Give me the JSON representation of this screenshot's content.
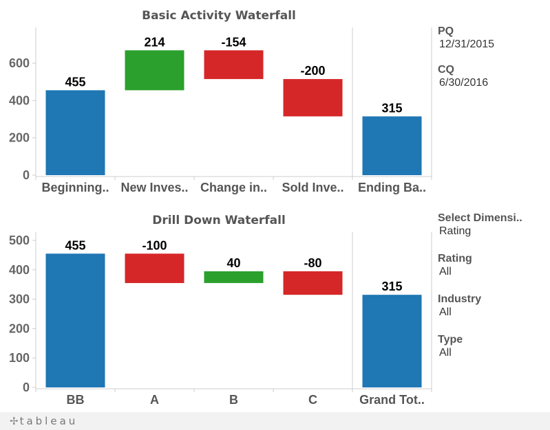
{
  "colors": {
    "total": "#1f77b4",
    "increase": "#2ca02c",
    "decrease": "#d62728",
    "axis": "#cccccc",
    "tick": "#666666",
    "title": "#555555"
  },
  "chart_data": [
    {
      "type": "bar",
      "subtype": "waterfall",
      "title": "Basic Activity Waterfall",
      "categories": [
        "Beginning..",
        "New Inves..",
        "Change in..",
        "Sold Inve..",
        "Ending Ba.."
      ],
      "values": [
        455,
        214,
        -154,
        -200,
        315
      ],
      "data_labels": [
        "455",
        "214",
        "-154",
        "-200",
        "315"
      ],
      "bar_kind": [
        "total",
        "delta",
        "delta",
        "delta",
        "total"
      ],
      "yticks": [
        0,
        200,
        400,
        600
      ],
      "ytick_labels": [
        "0",
        "200",
        "400",
        "600"
      ],
      "ylim": [
        -40,
        780
      ],
      "grid": false,
      "xlabel": "",
      "ylabel": ""
    },
    {
      "type": "bar",
      "subtype": "waterfall",
      "title": "Drill Down Waterfall",
      "categories": [
        "BB",
        "A",
        "B",
        "C",
        "Grand Tot.."
      ],
      "values": [
        455,
        -100,
        40,
        -80,
        315
      ],
      "data_labels": [
        "455",
        "-100",
        "40",
        "-80",
        "315"
      ],
      "bar_kind": [
        "total",
        "delta",
        "delta",
        "delta",
        "total"
      ],
      "yticks": [
        0,
        100,
        200,
        300,
        400,
        500
      ],
      "ytick_labels": [
        "0",
        "100",
        "200",
        "300",
        "400",
        "500"
      ],
      "ylim": [
        -20,
        540
      ],
      "grid": false,
      "xlabel": "",
      "ylabel": ""
    }
  ],
  "panel": {
    "pq": {
      "label": "PQ",
      "value": "12/31/2015"
    },
    "cq": {
      "label": "CQ",
      "value": "6/30/2016"
    },
    "select_dimension": {
      "label": "Select Dimensi..",
      "value": "Rating"
    },
    "rating": {
      "label": "Rating",
      "value": "All"
    },
    "industry": {
      "label": "Industry",
      "value": "All"
    },
    "type": {
      "label": "Type",
      "value": "All"
    }
  },
  "footer": {
    "logo_mark": "✢",
    "logo": "tableau"
  }
}
